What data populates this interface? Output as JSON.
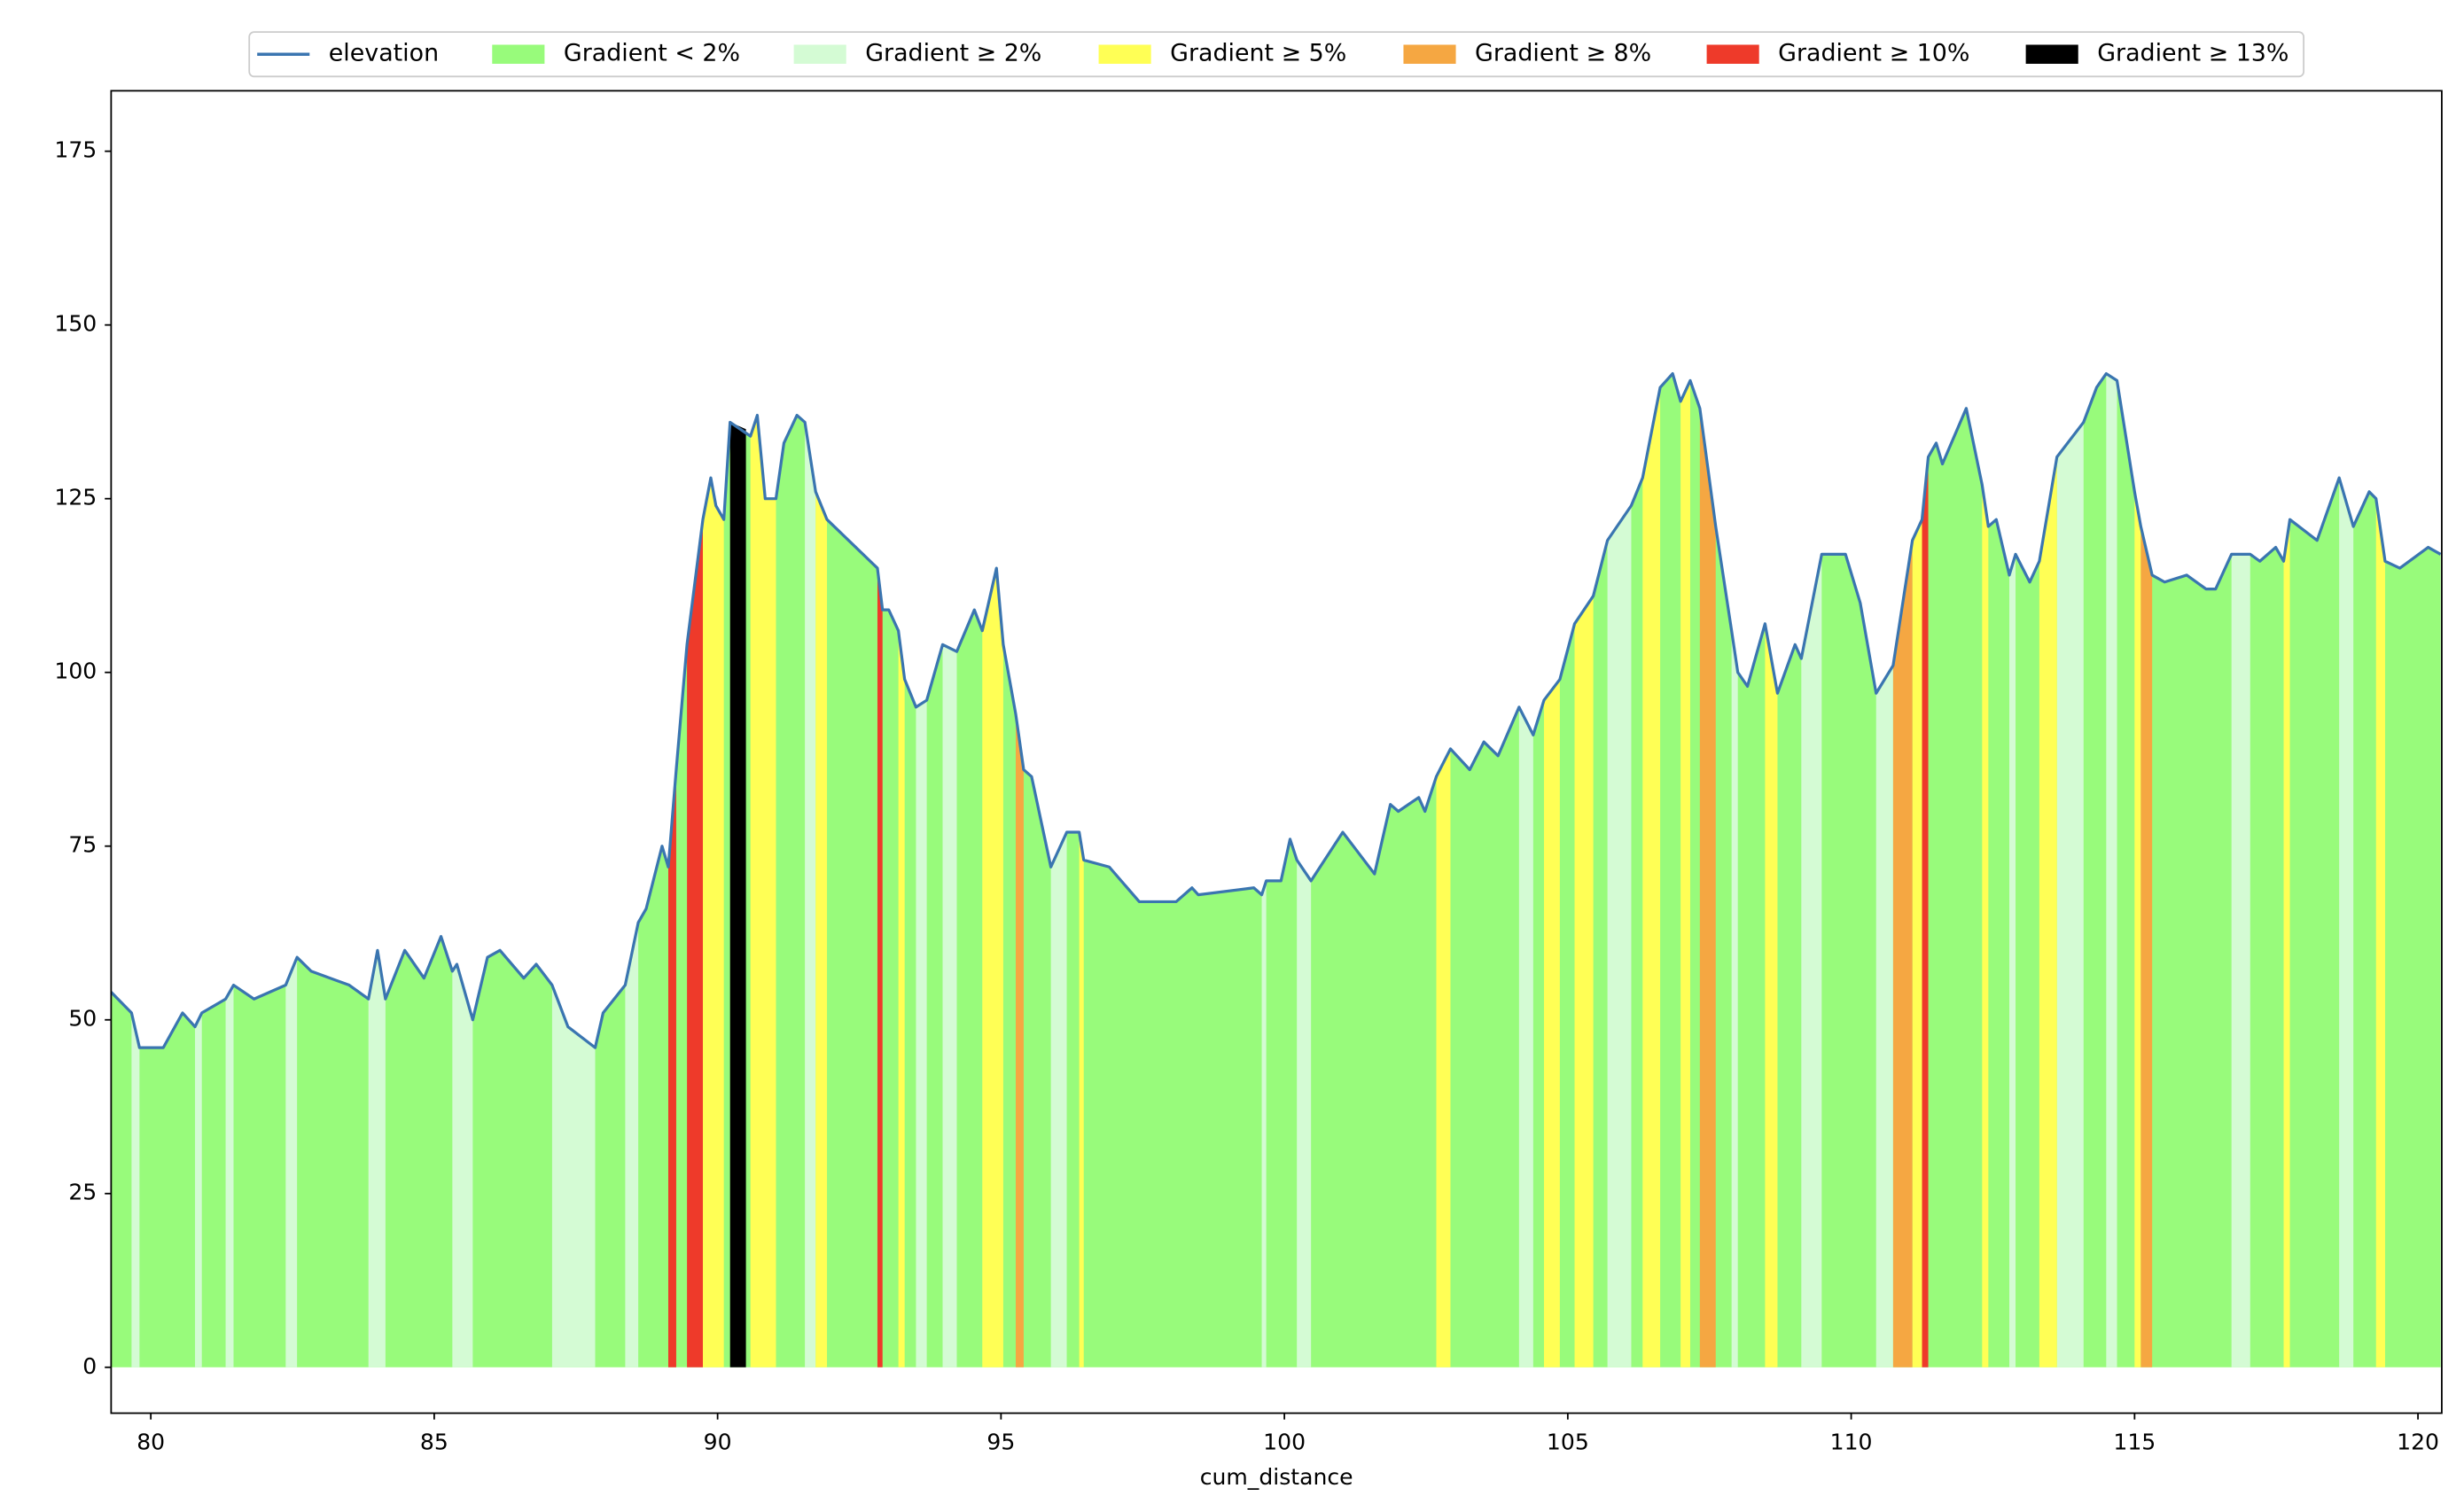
{
  "chart_data": {
    "type": "area",
    "xlabel": "cum_distance",
    "xlim": [
      79.3,
      120.42
    ],
    "ylim": [
      -6.6,
      183.7
    ],
    "xticks": [
      80,
      85,
      90,
      95,
      100,
      105,
      110,
      115,
      120
    ],
    "yticks": [
      0,
      25,
      50,
      75,
      100,
      125,
      150,
      175
    ],
    "legend": "upper center",
    "x": [
      79.3,
      79.66,
      79.8,
      80.22,
      80.56,
      80.78,
      80.9,
      81.32,
      81.46,
      81.82,
      82.38,
      82.58,
      82.83,
      83.5,
      83.84,
      84.0,
      84.14,
      84.48,
      84.82,
      85.12,
      85.32,
      85.4,
      85.68,
      85.94,
      86.16,
      86.58,
      86.8,
      87.08,
      87.36,
      87.84,
      87.98,
      88.37,
      88.6,
      88.74,
      89.02,
      89.13,
      89.27,
      89.46,
      89.74,
      89.88,
      89.97,
      90.11,
      90.22,
      90.58,
      90.7,
      90.84,
      91.03,
      91.17,
      91.4,
      91.54,
      91.73,
      91.93,
      92.82,
      92.91,
      93.02,
      93.19,
      93.3,
      93.5,
      93.69,
      93.97,
      94.22,
      94.53,
      94.67,
      94.92,
      95.04,
      95.26,
      95.4,
      95.54,
      95.88,
      96.16,
      96.38,
      96.46,
      96.91,
      97.44,
      98.09,
      98.37,
      98.48,
      99.46,
      99.6,
      99.68,
      99.94,
      100.1,
      100.22,
      100.47,
      101.03,
      101.59,
      101.87,
      102.01,
      102.37,
      102.48,
      102.68,
      102.93,
      103.27,
      103.52,
      103.77,
      104.14,
      104.39,
      104.58,
      104.86,
      105.12,
      105.45,
      105.7,
      106.12,
      106.32,
      106.63,
      106.85,
      106.99,
      107.16,
      107.33,
      107.61,
      107.89,
      108.0,
      108.17,
      108.48,
      108.7,
      109.01,
      109.12,
      109.48,
      109.9,
      110.16,
      110.44,
      110.74,
      111.08,
      111.25,
      111.36,
      111.5,
      111.61,
      112.03,
      112.31,
      112.42,
      112.56,
      112.79,
      112.9,
      113.15,
      113.32,
      113.63,
      114.1,
      114.33,
      114.5,
      114.69,
      115.0,
      115.11,
      115.31,
      115.53,
      115.92,
      116.26,
      116.43,
      116.71,
      117.04,
      117.21,
      117.49,
      117.63,
      117.74,
      118.22,
      118.61,
      118.86,
      119.14,
      119.26,
      119.42,
      119.68,
      120.18,
      120.4
    ],
    "series": [
      {
        "name": "elevation",
        "color": "#3a75b0",
        "values": [
          54,
          51,
          46,
          46,
          51,
          49,
          51,
          53,
          55,
          53,
          55,
          59,
          57,
          55,
          53,
          60,
          53,
          60,
          56,
          62,
          57,
          58,
          50,
          59,
          60,
          56,
          58,
          55,
          49,
          46,
          51,
          55,
          64,
          66,
          75,
          72,
          86,
          104,
          122,
          128,
          124,
          122,
          136,
          134,
          137,
          125,
          125,
          133,
          137,
          136,
          126,
          122,
          115,
          109,
          109,
          106,
          99,
          95,
          96,
          104,
          103,
          109,
          106,
          115,
          104,
          94,
          86,
          85,
          72,
          77,
          77,
          73,
          72,
          67,
          67,
          69,
          68,
          69,
          68,
          70,
          70,
          76,
          73,
          70,
          77,
          71,
          81,
          80,
          82,
          80,
          85,
          89,
          86,
          90,
          88,
          95,
          91,
          96,
          99,
          107,
          111,
          119,
          124,
          128,
          141,
          143,
          139,
          142,
          138,
          121,
          106,
          100,
          98,
          107,
          97,
          104,
          102,
          117,
          117,
          110,
          97,
          101,
          119,
          122,
          131,
          133,
          130,
          138,
          127,
          121,
          122,
          114,
          117,
          113,
          116,
          131,
          136,
          141,
          143,
          142,
          126,
          121,
          114,
          113,
          114,
          112,
          112,
          117,
          117,
          116,
          118,
          116,
          122,
          119,
          128,
          121,
          126,
          125,
          116,
          115,
          118,
          117
        ]
      }
    ],
    "fills": [
      {
        "name": "Gradient < 2%",
        "color": "#98fb7b"
      },
      {
        "name": "Gradient ≥ 2%",
        "color": "#d4fbd4",
        "x": [
          79.66,
          79.8,
          null,
          80.78,
          80.9,
          null,
          81.32,
          81.46,
          null,
          82.38,
          82.58,
          null,
          83.84,
          84.0,
          84.14,
          null,
          85.32,
          85.4,
          85.68,
          null,
          87.08,
          87.36,
          87.84,
          null,
          88.37,
          88.6,
          null,
          91.54,
          91.73,
          null,
          93.5,
          93.69,
          null,
          93.97,
          94.22,
          null,
          95.88,
          96.16,
          null,
          99.6,
          99.68,
          null,
          100.22,
          100.47,
          null,
          104.14,
          104.39,
          null,
          105.7,
          106.12,
          null,
          107.89,
          108.0,
          null,
          109.12,
          109.48,
          null,
          110.44,
          110.74,
          null,
          112.79,
          112.9,
          null,
          113.63,
          114.1,
          null,
          114.5,
          114.69,
          null,
          116.71,
          117.04,
          null,
          118.61,
          118.86
        ],
        "values": [
          51,
          46,
          null,
          49,
          51,
          null,
          53,
          55,
          null,
          55,
          59,
          null,
          53,
          60,
          53,
          null,
          57,
          58,
          50,
          null,
          55,
          49,
          46,
          null,
          55,
          64,
          null,
          136,
          126,
          null,
          95,
          96,
          null,
          104,
          103,
          null,
          72,
          77,
          null,
          68,
          70,
          null,
          73,
          70,
          null,
          95,
          91,
          null,
          119,
          124,
          null,
          106,
          100,
          null,
          102,
          117,
          null,
          97,
          101,
          null,
          114,
          117,
          null,
          131,
          136,
          null,
          143,
          142,
          null,
          117,
          117,
          null,
          128,
          121
        ]
      },
      {
        "name": "Gradient ≥ 5%",
        "color": "#ffff55",
        "x": [
          89.74,
          89.88,
          89.97,
          90.11,
          null,
          90.58,
          90.7,
          90.84,
          91.03,
          null,
          91.73,
          91.93,
          null,
          93.19,
          93.3,
          null,
          94.67,
          94.92,
          95.04,
          null,
          96.38,
          96.46,
          null,
          102.68,
          102.93,
          null,
          104.58,
          104.86,
          null,
          105.12,
          105.45,
          null,
          106.32,
          106.63,
          null,
          106.99,
          107.16,
          null,
          108.48,
          108.7,
          null,
          111.08,
          111.25,
          null,
          112.31,
          112.42,
          null,
          113.32,
          113.63,
          null,
          115.0,
          115.11,
          null,
          117.63,
          117.74,
          null,
          119.26,
          119.42
        ],
        "values": [
          122,
          128,
          124,
          122,
          null,
          134,
          137,
          125,
          125,
          null,
          126,
          122,
          null,
          106,
          99,
          null,
          106,
          115,
          104,
          null,
          77,
          73,
          null,
          85,
          89,
          null,
          96,
          99,
          null,
          107,
          111,
          null,
          128,
          141,
          null,
          139,
          142,
          null,
          107,
          97,
          null,
          119,
          122,
          null,
          127,
          121,
          null,
          116,
          131,
          null,
          126,
          121,
          null,
          116,
          122,
          null,
          125,
          116
        ]
      },
      {
        "name": "Gradient ≥ 8%",
        "color": "#f5a742",
        "x": [
          95.26,
          95.4,
          null,
          107.33,
          107.61,
          null,
          110.74,
          111.08,
          null,
          115.11,
          115.31
        ],
        "values": [
          94,
          86,
          null,
          138,
          121,
          null,
          101,
          119,
          null,
          121,
          114
        ]
      },
      {
        "name": "Gradient ≥ 10%",
        "color": "#ee3a2a",
        "x": [
          89.13,
          89.27,
          null,
          89.46,
          89.74,
          null,
          92.82,
          92.91,
          null,
          111.25,
          111.36
        ],
        "values": [
          72,
          86,
          null,
          104,
          122,
          null,
          115,
          109,
          null,
          122,
          131
        ]
      },
      {
        "name": "Gradient ≥ 13%",
        "color": "#000000",
        "x": [
          90.22,
          90.5
        ],
        "values": [
          136,
          135
        ]
      }
    ]
  }
}
